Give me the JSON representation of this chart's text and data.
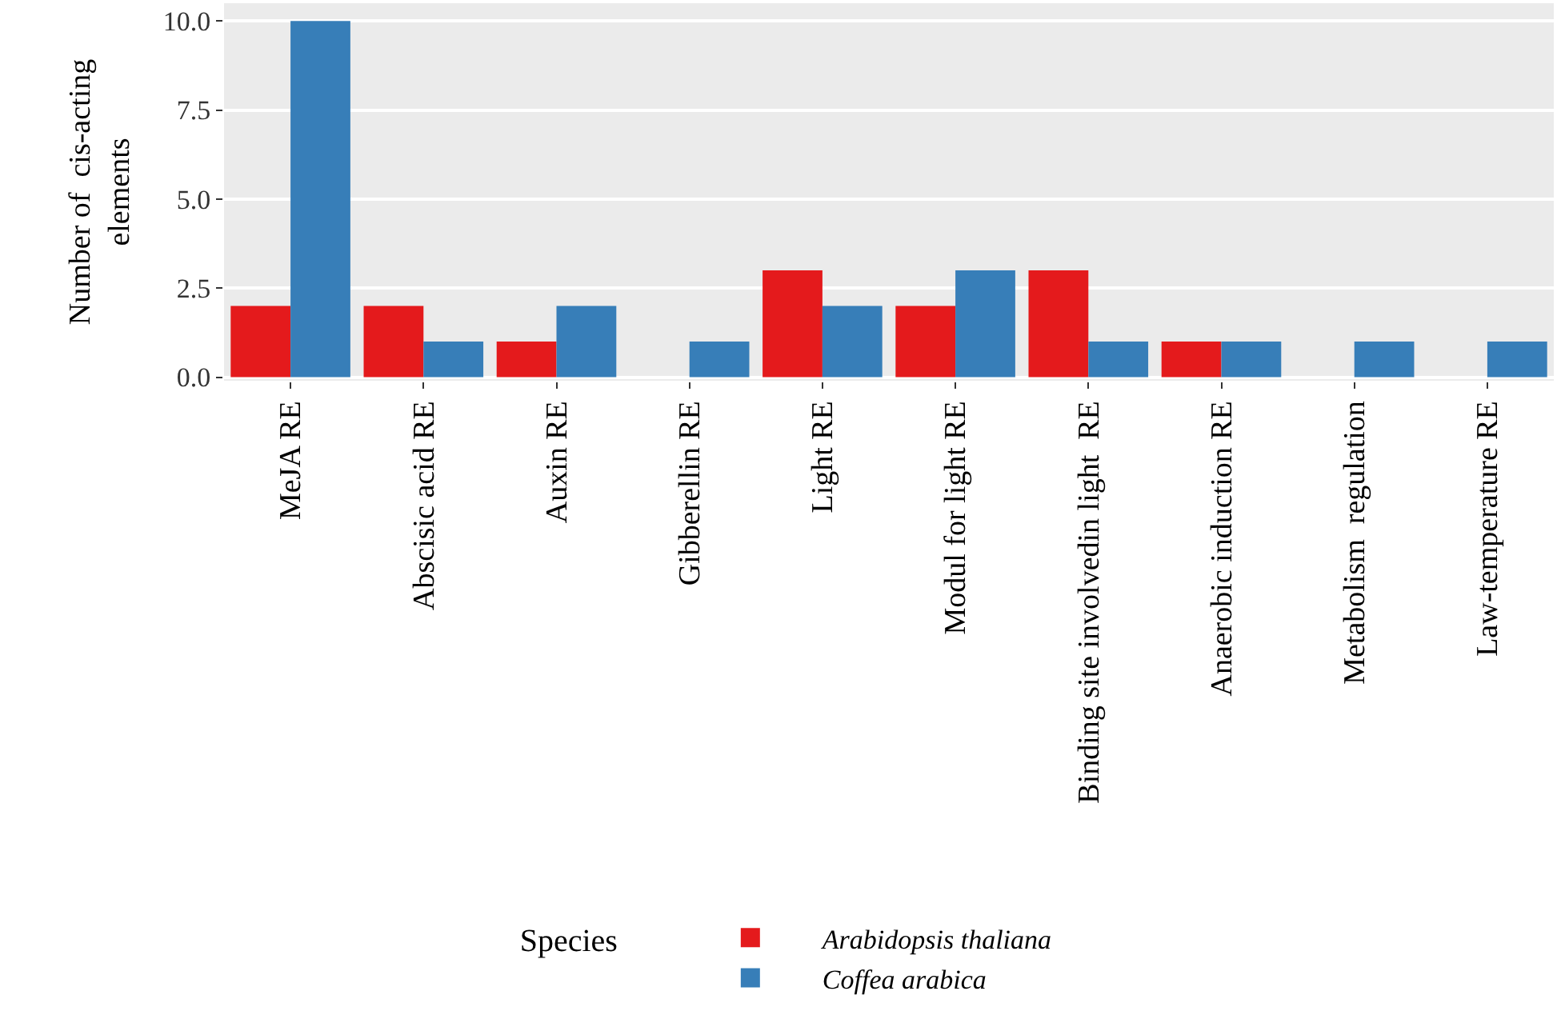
{
  "chart_data": {
    "type": "bar",
    "ylabel": "Number of  cis-acting\nelements",
    "legend_title": "Species",
    "categories": [
      "MeJA RE",
      "Abscisic acid RE",
      "Auxin RE",
      "Gibberellin RE",
      "Light RE",
      "Modul for light RE",
      "Binding site involvedin light  RE",
      "Anaerobic induction RE",
      "Metabolism  regulation",
      "Law-temperature RE"
    ],
    "series": [
      {
        "name": "Arabidopsis thaliana",
        "color": "#e41a1c",
        "values": [
          2,
          2,
          1,
          0,
          3,
          2,
          3,
          1,
          0,
          0
        ]
      },
      {
        "name": "Coffea arabica",
        "color": "#377eb8",
        "values": [
          10,
          1,
          2,
          1,
          2,
          3,
          1,
          1,
          1,
          1
        ]
      }
    ],
    "ylim": [
      -0.1,
      10.5
    ],
    "yticks": [
      {
        "value": 0,
        "label": "0.0"
      },
      {
        "value": 2.5,
        "label": "2.5"
      },
      {
        "value": 5,
        "label": "5.0"
      },
      {
        "value": 7.5,
        "label": "7.5"
      },
      {
        "value": 10,
        "label": "10.0"
      }
    ],
    "grid": "y",
    "legend": "bottom"
  }
}
